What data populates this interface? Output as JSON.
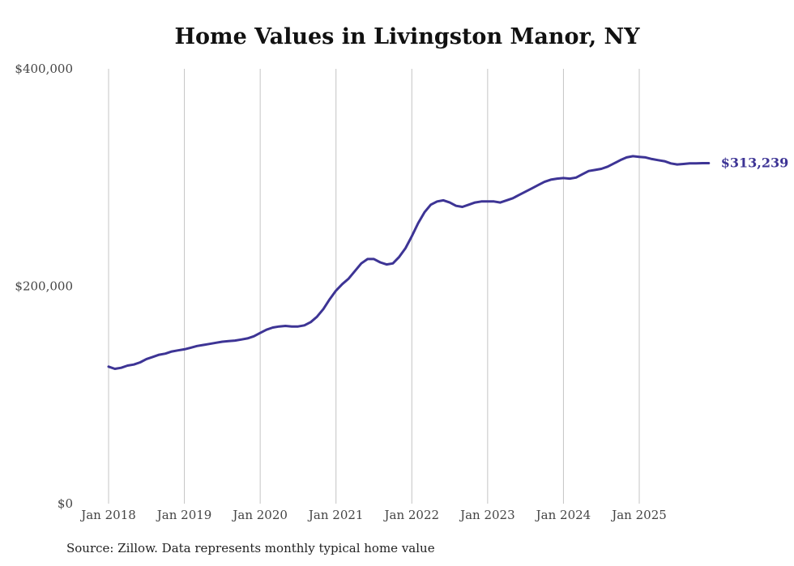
{
  "chart_data": {
    "type": "line",
    "title": "Home Values in Livingston Manor, NY",
    "source": "Source: Zillow. Data represents monthly typical home value",
    "xlabel": "",
    "ylabel": "",
    "ylim": [
      0,
      400000
    ],
    "y_ticks": [
      0,
      200000,
      400000
    ],
    "y_tick_labels": [
      "$0",
      "$200,000",
      "$400,000"
    ],
    "x_tick_labels": [
      "Jan 2018",
      "Jan 2019",
      "Jan 2020",
      "Jan 2021",
      "Jan 2022",
      "Jan 2023",
      "Jan 2024",
      "Jan 2025"
    ],
    "x_start": "Jan 2018",
    "x_end": "Dec 2025",
    "grid": "vertical",
    "line_color": "#3d3495",
    "end_label": "$313,239",
    "series": [
      {
        "name": "Typical home value",
        "values": [
          126000,
          124000,
          125000,
          127000,
          128000,
          130000,
          133000,
          135000,
          137000,
          138000,
          140000,
          141000,
          142000,
          143500,
          145000,
          146000,
          147000,
          148000,
          149000,
          149500,
          150000,
          151000,
          152000,
          154000,
          157000,
          160000,
          162000,
          163000,
          163500,
          163000,
          163000,
          164000,
          167000,
          172000,
          179000,
          188000,
          196000,
          202000,
          207000,
          214000,
          221000,
          225000,
          225000,
          222000,
          220000,
          221000,
          227000,
          235000,
          246000,
          258000,
          268000,
          275000,
          278000,
          279000,
          277000,
          274000,
          273000,
          275000,
          277000,
          278000,
          278000,
          278000,
          277000,
          279000,
          281000,
          284000,
          287000,
          290000,
          293000,
          296000,
          298000,
          299000,
          299500,
          299000,
          300000,
          303000,
          306000,
          307000,
          308000,
          310000,
          313000,
          316000,
          318500,
          319600,
          319000,
          318500,
          317000,
          316000,
          315000,
          313000,
          312000,
          312500,
          313000,
          313000,
          313200,
          313239
        ]
      }
    ]
  }
}
